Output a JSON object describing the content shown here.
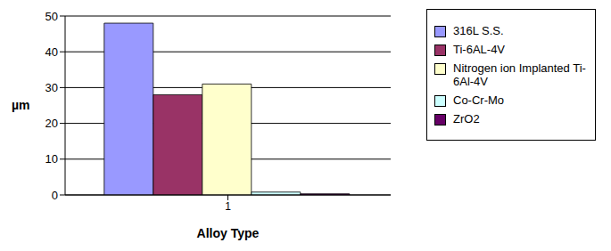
{
  "chart_data": {
    "type": "bar",
    "x_label": "Alloy Type",
    "y_label": "µm",
    "categories": [
      "1"
    ],
    "series": [
      {
        "name": "316L S.S.",
        "color": "#9999ff",
        "values": [
          48
        ]
      },
      {
        "name": "Ti-6AL-4V",
        "color": "#993366",
        "values": [
          28
        ]
      },
      {
        "name": "Nitrogen ion Implanted Ti-6Al-4V",
        "color": "#ffffcc",
        "values": [
          31
        ]
      },
      {
        "name": "Co-Cr-Mo",
        "color": "#ccffff",
        "values": [
          0.8
        ]
      },
      {
        "name": "ZrO2",
        "color": "#660066",
        "values": [
          0.3
        ]
      }
    ],
    "ylim": [
      0,
      50
    ],
    "yticks": [
      0,
      10,
      20,
      30,
      40,
      50
    ],
    "grid": true,
    "legend": "right"
  }
}
